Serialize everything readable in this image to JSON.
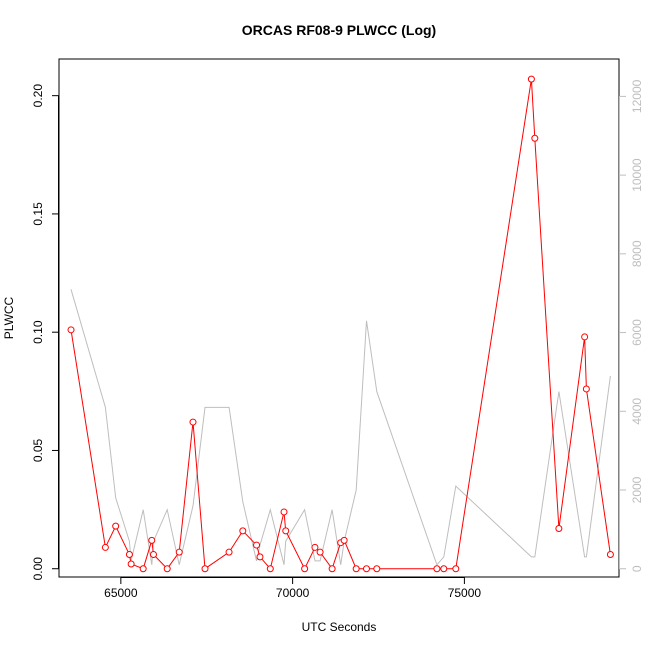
{
  "chart_data": {
    "type": "line",
    "title": "ORCAS RF08-9 PLWCC (Log)",
    "xlabel": "UTC Seconds",
    "ylabel": "PLWCC",
    "xlim": [
      63200,
      79500
    ],
    "ylim": [
      -0.0035,
      0.2155
    ],
    "y2lim": [
      -210,
      12950
    ],
    "x_ticks": [
      65000,
      70000,
      75000
    ],
    "x_tick_labels": [
      "65000",
      "70000",
      "75000"
    ],
    "y_ticks": [
      0.0,
      0.05,
      0.1,
      0.15,
      0.2
    ],
    "y_tick_labels": [
      "0.00",
      "0.05",
      "0.10",
      "0.15",
      "0.20"
    ],
    "y2_ticks": [
      0,
      2000,
      4000,
      6000,
      8000,
      10000,
      12000
    ],
    "y2_tick_labels": [
      "0",
      "2000",
      "4000",
      "6000",
      "8000",
      "10000",
      "12000"
    ],
    "grid": false,
    "series": [
      {
        "axis": "left",
        "color": "#ff0000",
        "marker": "open-circle",
        "x": [
          63550,
          64550,
          64850,
          65250,
          65300,
          65650,
          65900,
          65950,
          66350,
          66700,
          67100,
          67450,
          68150,
          68550,
          68950,
          69050,
          69350,
          69750,
          69800,
          70350,
          70650,
          70800,
          71150,
          71400,
          71500,
          71850,
          72150,
          72450,
          74200,
          74400,
          74750,
          76950,
          77050,
          77750,
          78500,
          78550,
          79250
        ],
        "y": [
          0.101,
          0.009,
          0.018,
          0.006,
          0.002,
          0.0,
          0.012,
          0.006,
          0.0,
          0.007,
          0.062,
          0.0,
          0.007,
          0.016,
          0.01,
          0.005,
          0.0,
          0.024,
          0.016,
          0.0,
          0.009,
          0.007,
          0.0,
          0.011,
          0.012,
          0.0,
          0.0,
          0.0,
          0.0,
          0.0,
          0.0,
          0.207,
          0.182,
          0.017,
          0.098,
          0.076,
          0.006
        ]
      },
      {
        "axis": "right",
        "color": "#bebebe",
        "marker": "none",
        "x": [
          63550,
          64550,
          64850,
          65250,
          65300,
          65650,
          65900,
          65950,
          66350,
          66700,
          67100,
          67450,
          68150,
          68550,
          68950,
          69050,
          69350,
          69750,
          69800,
          70350,
          70650,
          70800,
          71150,
          71400,
          71500,
          71850,
          72150,
          72450,
          74200,
          74400,
          74750,
          76950,
          77050,
          77750,
          78500,
          78550,
          79250
        ],
        "y": [
          7100,
          4100,
          1800,
          700,
          200,
          1500,
          100,
          700,
          1500,
          100,
          1600,
          4100,
          4100,
          1700,
          200,
          600,
          1500,
          100,
          700,
          1500,
          200,
          200,
          1500,
          100,
          700,
          2000,
          6300,
          4500,
          100,
          300,
          2100,
          300,
          300,
          4500,
          300,
          300,
          4900
        ]
      }
    ]
  }
}
